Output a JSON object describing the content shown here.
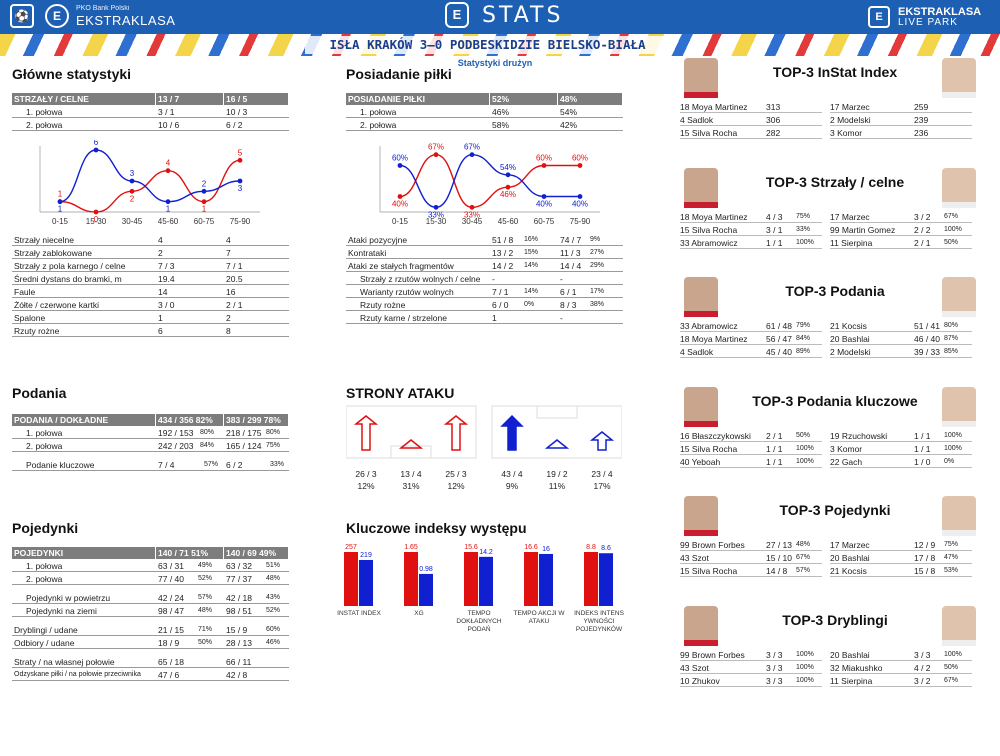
{
  "header": {
    "logo_left": "⚽",
    "sponsor": "PKO Bank Polski",
    "brand": "EKSTRAKLASA",
    "stats_logo": "E",
    "title": "STATS",
    "logo_right": "E",
    "brand_right_1": "EKSTRAKLASA",
    "brand_right_2": "LIVE PARK"
  },
  "match_title": "ISŁA KRAKÓW 3–0 PODBESKIDZIE BIELSKO-BIAŁA",
  "subtitle": "Statystyki drużyn",
  "colors": {
    "home": "#e01010",
    "away": "#1020d0",
    "header_bg": "#1d5fb3",
    "table_head": "#7d7d7d"
  },
  "sections": {
    "glowne": "Główne statystyki",
    "posiadanie": "Posiadanie piłki",
    "podania": "Podania",
    "strony": "STRONY ATAKU",
    "pojedynki": "Pojedynki",
    "indeksy": "Kluczowe indeksy występu"
  },
  "shots_table": {
    "head": [
      "STRZAŁY / CELNE",
      "13 / 7",
      "16 / 5"
    ],
    "rows": [
      [
        "1. połowa",
        "3 / 1",
        "10 / 3"
      ],
      [
        "2. połowa",
        "10 / 6",
        "6 / 2"
      ]
    ]
  },
  "shots_chart": {
    "type": "line",
    "categories": [
      "0-15",
      "15-30",
      "30-45",
      "45-60",
      "60-75",
      "75-90"
    ],
    "series": [
      {
        "values": [
          1,
          0,
          2,
          4,
          1,
          5
        ]
      },
      {
        "values": [
          1,
          6,
          3,
          1,
          2,
          3
        ]
      }
    ],
    "ylim": [
      0,
      6
    ]
  },
  "main_stats": [
    [
      "Strzały niecelne",
      "4",
      "4"
    ],
    [
      "Strzały zablokowane",
      "2",
      "7"
    ],
    [
      "Strzały z pola karnego / celne",
      "7 / 3",
      "7 / 1"
    ],
    [
      "Średni dystans do bramki, m",
      "19.4",
      "20.5"
    ],
    [
      "Faule",
      "14",
      "16"
    ],
    [
      "Żółte / czerwone kartki",
      "3 / 0",
      "2 / 1"
    ],
    [
      "Spalone",
      "1",
      "2"
    ],
    [
      "Rzuty rożne",
      "6",
      "8"
    ]
  ],
  "possession_table": {
    "head": [
      "POSIADANIE PIŁKI",
      "52%",
      "48%"
    ],
    "rows": [
      [
        "1. połowa",
        "46%",
        "54%"
      ],
      [
        "2. połowa",
        "58%",
        "42%"
      ]
    ]
  },
  "possession_chart": {
    "type": "line",
    "categories": [
      "0-15",
      "15-30",
      "30-45",
      "45-60",
      "60-75",
      "75-90"
    ],
    "series": [
      {
        "values": [
          40,
          67,
          33,
          46,
          60,
          60
        ]
      },
      {
        "values": [
          60,
          33,
          67,
          54,
          40,
          40
        ]
      }
    ],
    "ylim": [
      30,
      70
    ]
  },
  "attack_stats": [
    [
      "Ataki pozycyjne",
      "51 / 8",
      "16%",
      "74 / 7",
      "9%"
    ],
    [
      "Kontrataki",
      "13 / 2",
      "15%",
      "11 / 3",
      "27%"
    ],
    [
      "Ataki ze stałych fragmentów",
      "14 / 2",
      "14%",
      "14 / 4",
      "29%"
    ],
    [
      "Strzały z rzutów wolnych / celne",
      "-",
      "",
      "-",
      ""
    ],
    [
      "Warianty rzutów wolnych",
      "7 / 1",
      "14%",
      "6 / 1",
      "17%"
    ],
    [
      "Rzuty rożne",
      "6 / 0",
      "0%",
      "8 / 3",
      "38%"
    ],
    [
      "Rzuty karne / strzelone",
      "1",
      "",
      "-",
      ""
    ]
  ],
  "passes_table": {
    "head": [
      "PODANIA / DOKŁADNE",
      "434 / 356 82%",
      "383 / 299 78%"
    ],
    "rows": [
      [
        "1. połowa",
        "192 / 153",
        "80%",
        "218 / 175",
        "80%"
      ],
      [
        "2. połowa",
        "242 / 203",
        "84%",
        "165 / 124",
        "75%"
      ]
    ],
    "key": [
      "Podanie kluczowe",
      "7 / 4",
      "57%",
      "6 / 2",
      "33%"
    ]
  },
  "attack_sides": {
    "home": [
      [
        "26 / 3",
        "12%"
      ],
      [
        "13 / 4",
        "31%"
      ],
      [
        "25 / 3",
        "12%"
      ]
    ],
    "away": [
      [
        "43 / 4",
        "9%"
      ],
      [
        "19 / 2",
        "11%"
      ],
      [
        "23 / 4",
        "17%"
      ]
    ]
  },
  "duels_table": {
    "head": [
      "POJEDYNKI",
      "140 / 71 51%",
      "140 / 69 49%"
    ],
    "rows": [
      [
        "1. połowa",
        "63 / 31",
        "49%",
        "63 / 32",
        "51%"
      ],
      [
        "2. połowa",
        "77 / 40",
        "52%",
        "77 / 37",
        "48%"
      ],
      [
        "Pojedynki w powietrzu",
        "42 / 24",
        "57%",
        "42 / 18",
        "43%"
      ],
      [
        "Pojedynki na ziemi",
        "98 / 47",
        "48%",
        "98 / 51",
        "52%"
      ],
      [
        "Dryblingi / udane",
        "21 / 15",
        "71%",
        "15 / 9",
        "60%"
      ],
      [
        "Odbiory / udane",
        "18 / 9",
        "50%",
        "28 / 13",
        "46%"
      ],
      [
        "Straty / na własnej połowie",
        "65 / 18",
        "",
        "66 / 11",
        ""
      ],
      [
        "Odzyskane piłki / na połowie przeciwnika",
        "47 / 6",
        "",
        "42 / 8",
        ""
      ]
    ]
  },
  "index_chart": {
    "type": "bar",
    "categories": [
      "INSTAT INDEX",
      "XG",
      "TEMPO DOKŁADNYCH PODAŃ",
      "TEMPO AKCJI W ATAKU",
      "INDEKS INTENSYWNOŚCI POJEDYNKÓW"
    ],
    "category_lines": [
      [
        "INSTAT INDEX"
      ],
      [
        "XG"
      ],
      [
        "TEMPO",
        "DOKŁADNYCH",
        "PODAŃ"
      ],
      [
        "TEMPO AKCJI W",
        "ATAKU"
      ],
      [
        "INDEKS INTENS",
        "YWNOŚCI",
        "POJEDYNKÓW"
      ]
    ],
    "labels_home": [
      "257",
      "1.65",
      "15.6",
      "16.6",
      "8.8"
    ],
    "labels_away": [
      "219",
      "0.98",
      "14.2",
      "16",
      "8.6"
    ],
    "series": [
      {
        "values": [
          257,
          1.65,
          15.6,
          16.6,
          8.8
        ]
      },
      {
        "values": [
          219,
          0.98,
          14.2,
          16,
          8.6
        ]
      }
    ]
  },
  "top3": [
    {
      "title": "TOP-3 InStat Index",
      "home": [
        [
          "18 Moya Martinez",
          "313",
          ""
        ],
        [
          "4  Sadlok",
          "306",
          ""
        ],
        [
          "15 Silva Rocha",
          "282",
          ""
        ]
      ],
      "away": [
        [
          "17 Marzec",
          "259",
          ""
        ],
        [
          "2  Modelski",
          "239",
          ""
        ],
        [
          "3  Komor",
          "236",
          ""
        ]
      ]
    },
    {
      "title": "TOP-3 Strzały / celne",
      "home": [
        [
          "18 Moya Martinez",
          "4 / 3",
          "75%"
        ],
        [
          "15 Silva Rocha",
          "3 / 1",
          "33%"
        ],
        [
          "33 Abramowicz",
          "1 / 1",
          "100%"
        ]
      ],
      "away": [
        [
          "17 Marzec",
          "3 / 2",
          "67%"
        ],
        [
          "99 Martin Gomez",
          "2 / 2",
          "100%"
        ],
        [
          "11 Sierpina",
          "2 / 1",
          "50%"
        ]
      ]
    },
    {
      "title": "TOP-3 Podania",
      "home": [
        [
          "33 Abramowicz",
          "61 / 48",
          "79%"
        ],
        [
          "18 Moya Martinez",
          "56 / 47",
          "84%"
        ],
        [
          "4  Sadlok",
          "45 / 40",
          "89%"
        ]
      ],
      "away": [
        [
          "21 Kocsis",
          "51 / 41",
          "80%"
        ],
        [
          "20 Bashlai",
          "46 / 40",
          "87%"
        ],
        [
          "2  Modelski",
          "39 / 33",
          "85%"
        ]
      ]
    },
    {
      "title": "TOP-3 Podania kluczowe",
      "home": [
        [
          "16 Błaszczykowski",
          "2 / 1",
          "50%"
        ],
        [
          "15 Silva Rocha",
          "1 / 1",
          "100%"
        ],
        [
          "40 Yeboah",
          "1 / 1",
          "100%"
        ]
      ],
      "away": [
        [
          "19 Rzuchowski",
          "1 / 1",
          "100%"
        ],
        [
          "3  Komor",
          "1 / 1",
          "100%"
        ],
        [
          "22 Gach",
          "1 / 0",
          "0%"
        ]
      ]
    },
    {
      "title": "TOP-3 Pojedynki",
      "home": [
        [
          "99 Brown Forbes",
          "27 / 13",
          "48%"
        ],
        [
          "43 Szot",
          "15 / 10",
          "67%"
        ],
        [
          "15 Silva Rocha",
          "14 / 8",
          "57%"
        ]
      ],
      "away": [
        [
          "17 Marzec",
          "12 / 9",
          "75%"
        ],
        [
          "20 Bashlai",
          "17 / 8",
          "47%"
        ],
        [
          "21 Kocsis",
          "15 / 8",
          "53%"
        ]
      ]
    },
    {
      "title": "TOP-3 Dryblingi",
      "home": [
        [
          "99 Brown Forbes",
          "3 / 3",
          "100%"
        ],
        [
          "43 Szot",
          "3 / 3",
          "100%"
        ],
        [
          "10 Zhukov",
          "3 / 3",
          "100%"
        ]
      ],
      "away": [
        [
          "20 Bashlai",
          "3 / 3",
          "100%"
        ],
        [
          "32 Miakushko",
          "4 / 2",
          "50%"
        ],
        [
          "11 Sierpina",
          "3 / 2",
          "67%"
        ]
      ]
    }
  ]
}
